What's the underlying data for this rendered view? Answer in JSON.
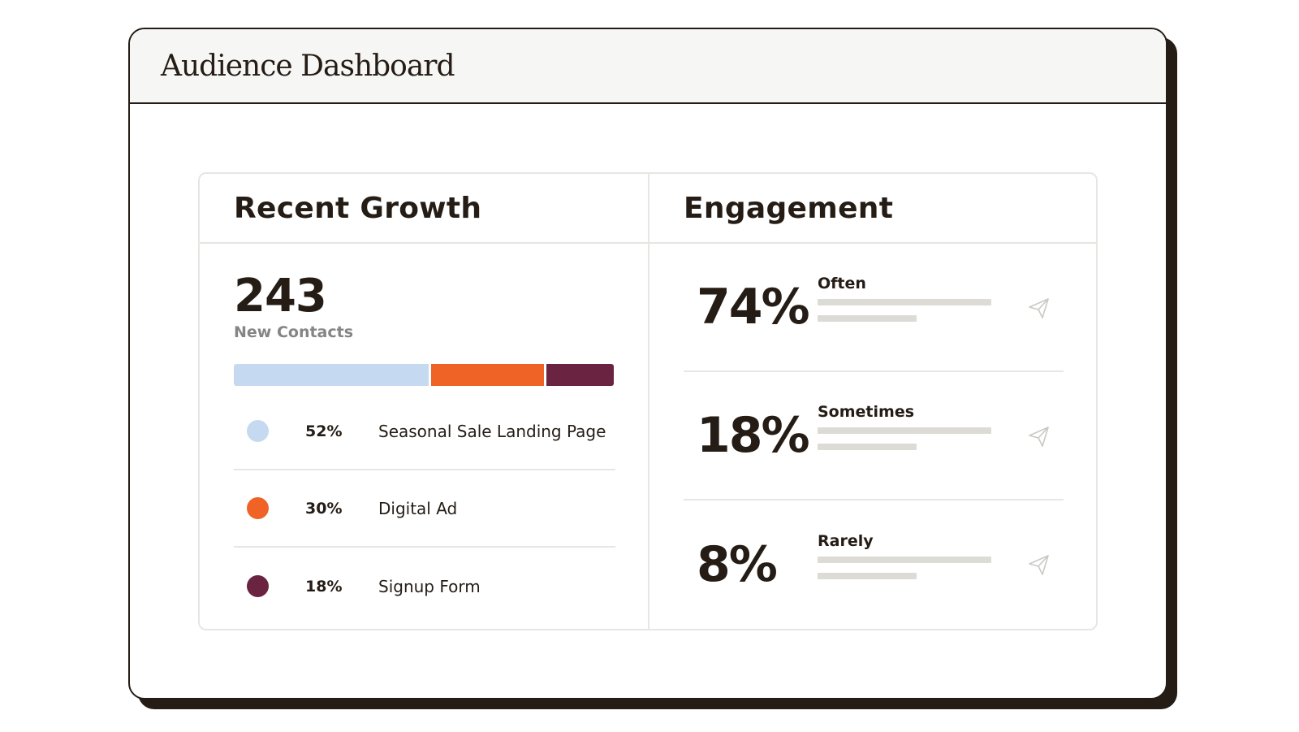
{
  "window": {
    "title": "Audience Dashboard"
  },
  "growth": {
    "title": "Recent Growth",
    "count": "243",
    "count_label": "New Contacts",
    "sources": [
      {
        "pct_label": "52%",
        "share": 52,
        "name": "Seasonal Sale Landing Page",
        "color": "#c5d9f0"
      },
      {
        "pct_label": "30%",
        "share": 30,
        "name": "Digital Ad",
        "color": "#ef6326"
      },
      {
        "pct_label": "18%",
        "share": 18,
        "name": "Signup Form",
        "color": "#6a2340"
      }
    ]
  },
  "engagement": {
    "title": "Engagement",
    "rows": [
      {
        "pct": "74%",
        "label": "Often",
        "icon": "send-icon"
      },
      {
        "pct": "18%",
        "label": "Sometimes",
        "icon": "send-icon"
      },
      {
        "pct": "8%",
        "label": "Rarely",
        "icon": "send-icon"
      }
    ]
  },
  "colors": {
    "ink": "#241c15",
    "divider": "#e6e6e2",
    "placeholder_line": "#dcdbd6"
  }
}
